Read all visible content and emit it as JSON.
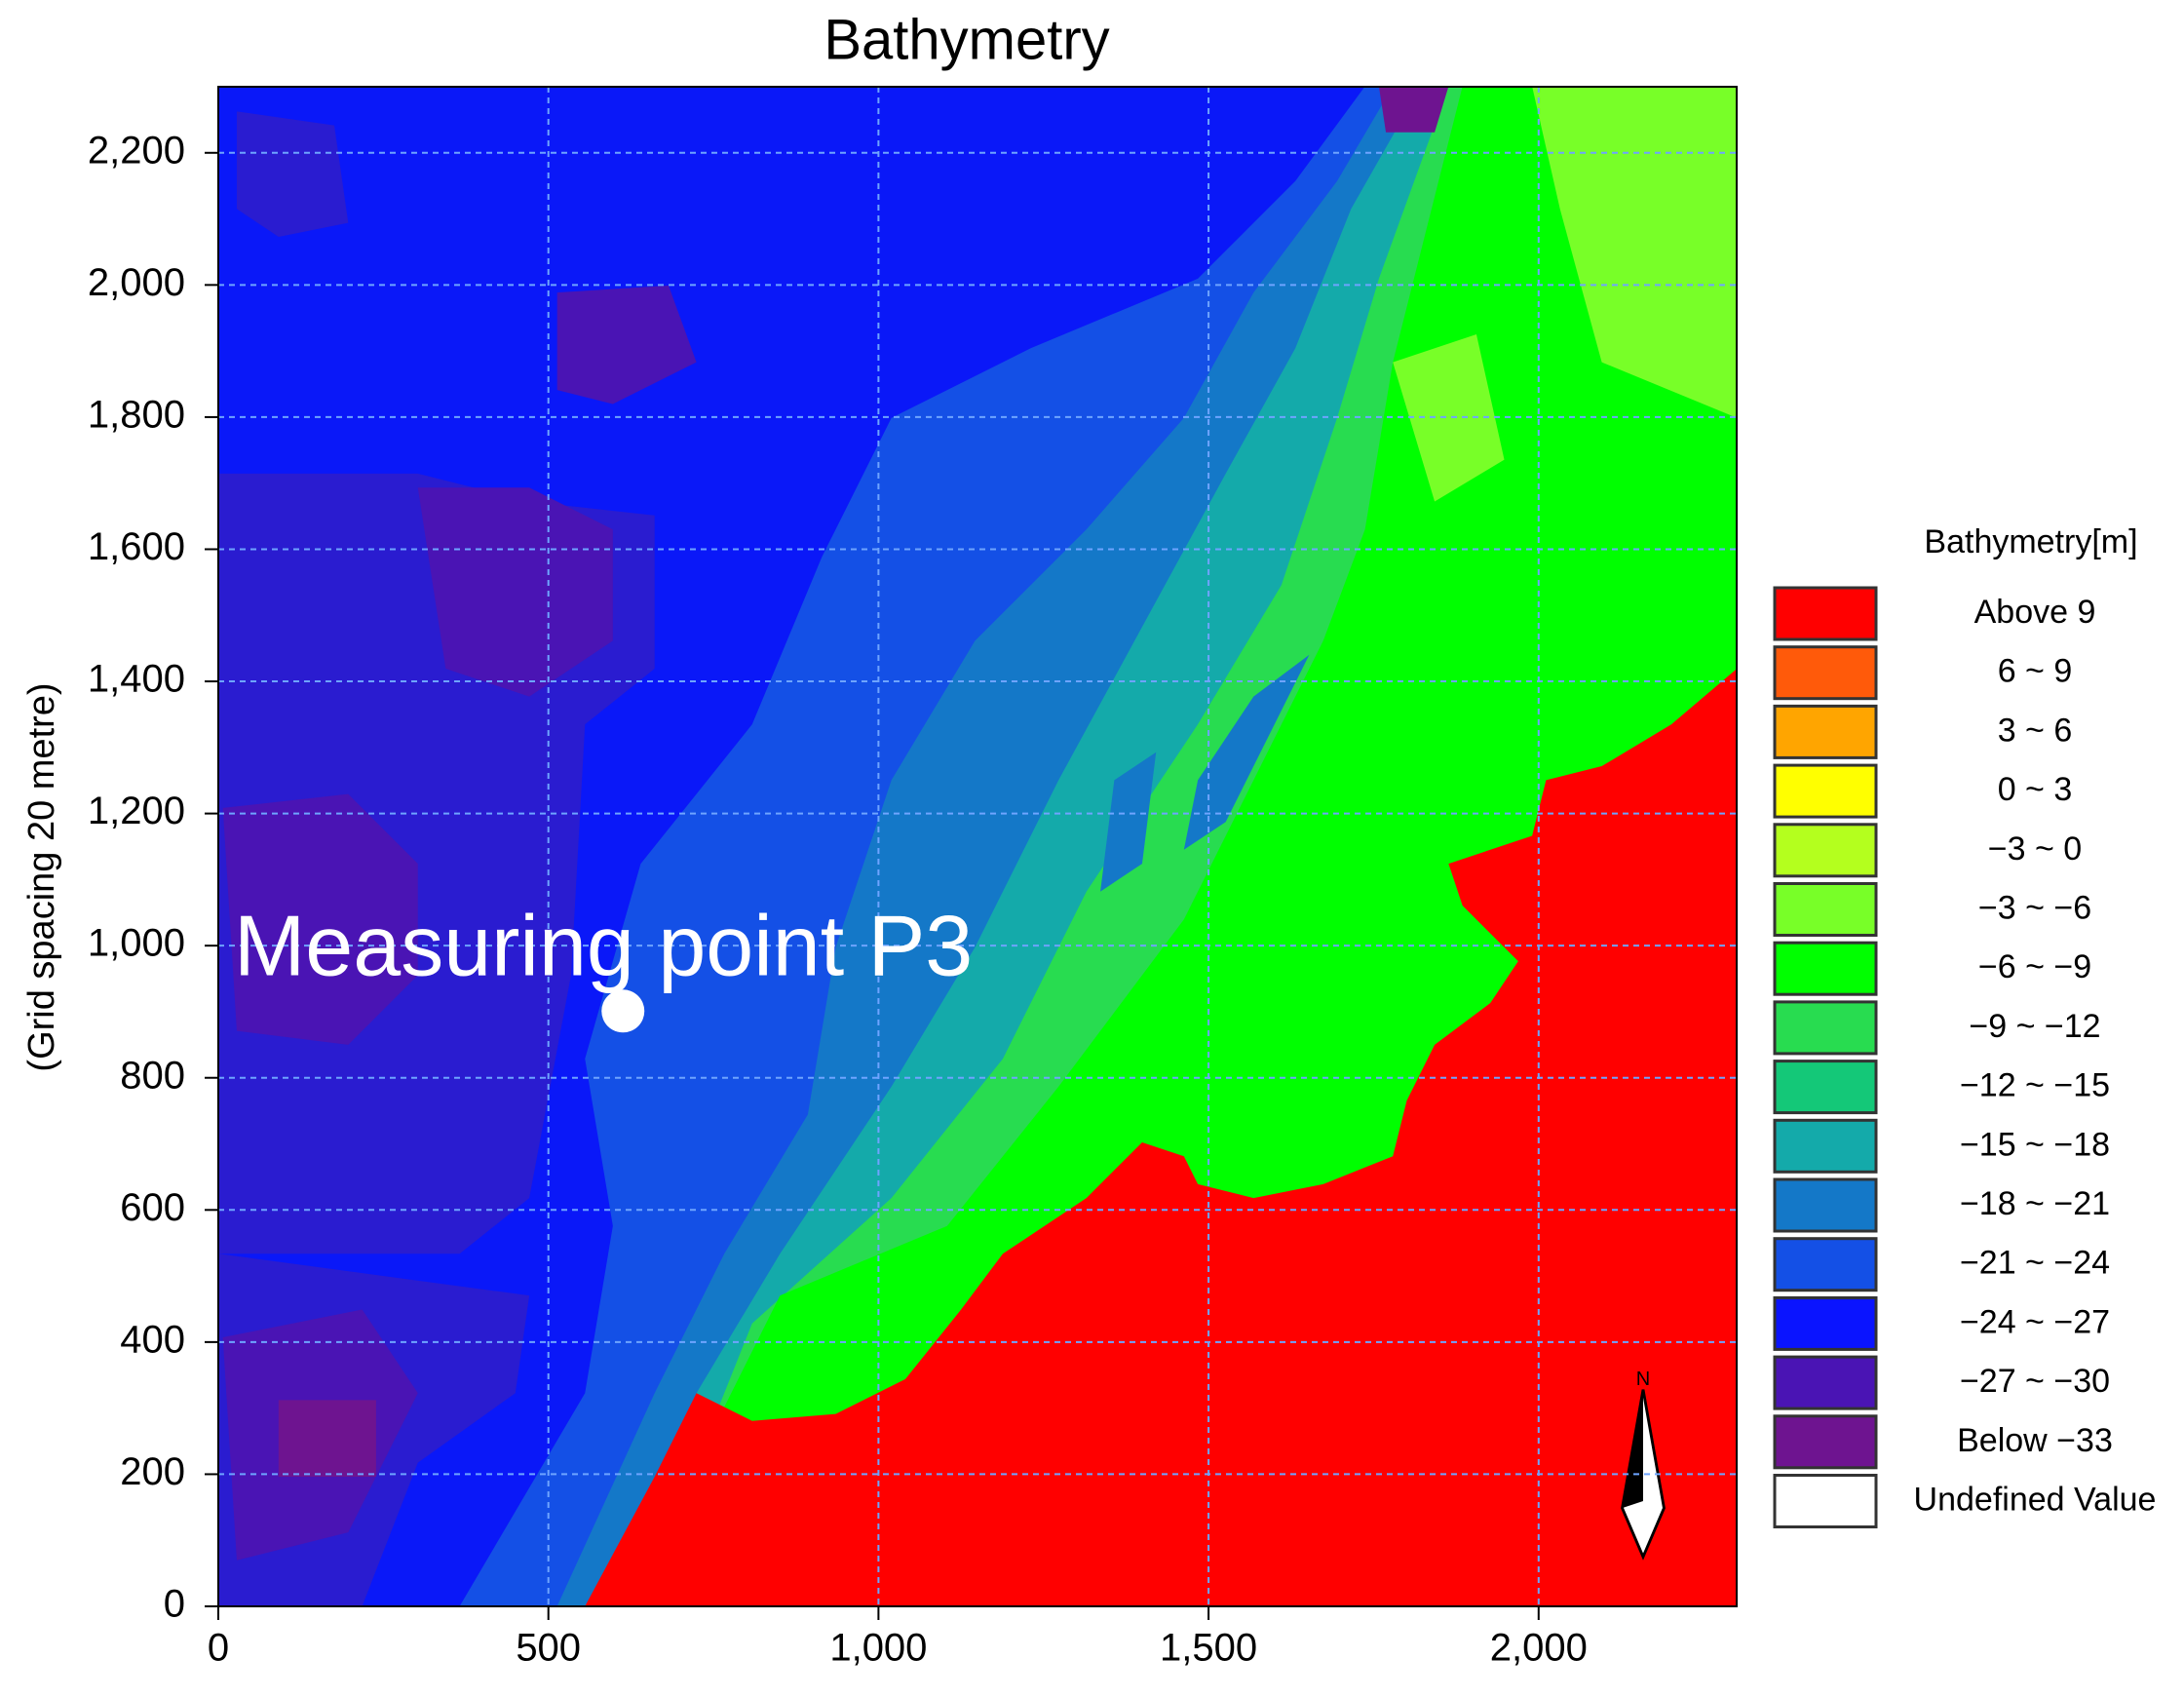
{
  "chart_data": {
    "type": "contour",
    "title": "Bathymetry",
    "y_label": "(Grid spacing 20 metre)",
    "xlim": [
      0,
      2300
    ],
    "ylim": [
      0,
      2300
    ],
    "xticks": [
      0,
      500,
      {
        "value": 1000,
        "label": "1,000"
      },
      {
        "value": 1500,
        "label": "1,500"
      },
      {
        "value": 2000,
        "label": "2,000"
      }
    ],
    "yticks": [
      0,
      200,
      400,
      600,
      800,
      {
        "value": 1000,
        "label": "1,000"
      },
      {
        "value": 1200,
        "label": "1,200"
      },
      {
        "value": 1400,
        "label": "1,400"
      },
      {
        "value": 1600,
        "label": "1,600"
      },
      {
        "value": 1800,
        "label": "1,800"
      },
      {
        "value": 2000,
        "label": "2,000"
      },
      {
        "value": 2200,
        "label": "2,200"
      }
    ],
    "grid": true,
    "legend": {
      "title": "Bathymetry[m]",
      "items": [
        {
          "label": "Above 9",
          "color": "#ff0000"
        },
        {
          "label": "6 ~ 9",
          "color": "#ff5a0a"
        },
        {
          "label": "3 ~ 6",
          "color": "#ffa500"
        },
        {
          "label": "0 ~ 3",
          "color": "#ffff00"
        },
        {
          "label": "−3 ~ 0",
          "color": "#b4ff1e"
        },
        {
          "label": "−3 ~ −6",
          "color": "#78ff28"
        },
        {
          "label": "−6 ~ −9",
          "color": "#00ff00"
        },
        {
          "label": "−9 ~ −12",
          "color": "#28dc50"
        },
        {
          "label": "−12 ~ −15",
          "color": "#14c878"
        },
        {
          "label": "−15 ~ −18",
          "color": "#14aaaa"
        },
        {
          "label": "−18 ~ −21",
          "color": "#1478c8"
        },
        {
          "label": "−21 ~ −24",
          "color": "#1450e6"
        },
        {
          "label": "−24 ~ −27",
          "color": "#0a14ff"
        },
        {
          "label": "−27 ~ −30",
          "color": "#4a14b4"
        },
        {
          "label": "Below −33",
          "color": "#6e1490"
        },
        {
          "label": "Undefined Value",
          "color": "#ffffff"
        }
      ]
    },
    "points": [
      {
        "label": "Measuring point P3",
        "x": 613,
        "y": 901,
        "color": "#ffffff"
      }
    ]
  }
}
